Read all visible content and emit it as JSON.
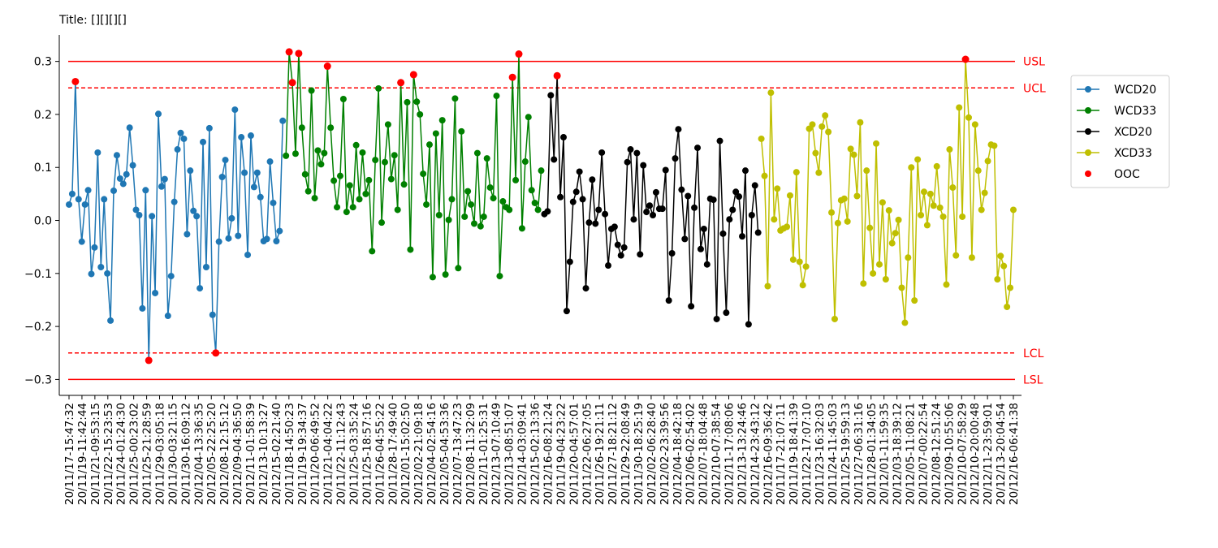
{
  "chart_data": {
    "type": "line",
    "title": "Title: [][][][]",
    "xlabel": "",
    "ylabel": "",
    "ylim": [
      -0.33,
      0.35
    ],
    "yticks": [
      -0.3,
      -0.2,
      -0.1,
      0.0,
      0.1,
      0.2,
      0.3
    ],
    "ytick_labels": [
      "−0.3",
      "−0.2",
      "−0.1",
      "0.0",
      "0.1",
      "0.2",
      "0.3"
    ],
    "grid": false,
    "legend_position": "right",
    "limits": [
      {
        "name": "USL",
        "value": 0.3,
        "style": "solid",
        "color": "#ff0000"
      },
      {
        "name": "UCL",
        "value": 0.25,
        "style": "dashed",
        "color": "#ff0000"
      },
      {
        "name": "LCL",
        "value": -0.25,
        "style": "dashed",
        "color": "#ff0000"
      },
      {
        "name": "LSL",
        "value": -0.3,
        "style": "solid",
        "color": "#ff0000"
      }
    ],
    "x_tick_labels": [
      "20/11/17-15:47:32",
      "20/11/19-11:42:44",
      "20/11/21-09:53:15",
      "20/11/22-15:23:53",
      "20/11/24-01:24:30",
      "20/11/25-00:23:02",
      "20/11/25-21:28:59",
      "20/11/29-03:05:18",
      "20/11/30-03:21:15",
      "20/11/30-16:09:12",
      "20/12/04-13:36:35",
      "20/12/05-22:25:20",
      "20/12/08-12:15:12",
      "20/12/09-04:36:50",
      "20/12/11-01:58:39",
      "20/12/13-10:13:27",
      "20/12/15-02:21:40",
      "20/11/18-14:50:23",
      "20/11/19-19:34:37",
      "20/11/20-06:49:52",
      "20/11/21-04:04:22",
      "20/11/22-11:12:43",
      "20/11/25-03:35:24",
      "20/11/25-18:57:16",
      "20/11/26-04:55:22",
      "20/11/28-17:49:40",
      "20/12/01-15:02:50",
      "20/12/02-21:09:18",
      "20/12/04-02:54:16",
      "20/12/05-04:53:36",
      "20/12/07-13:47:23",
      "20/12/08-11:32:09",
      "20/12/11-01:25:31",
      "20/12/13-07:10:49",
      "20/12/13-08:51:07",
      "20/12/14-03:09:41",
      "20/12/15-02:13:36",
      "20/12/16-08:21:24",
      "20/11/19-04:23:22",
      "20/11/20-04:57:01",
      "20/11/22-06:27:05",
      "20/11/26-19:21:11",
      "20/11/27-18:21:12",
      "20/11/29-22:08:49",
      "20/11/30-18:25:19",
      "20/12/02-06:28:40",
      "20/12/02-23:39:56",
      "20/12/04-18:42:18",
      "20/12/06-02:54:02",
      "20/12/07-18:04:48",
      "20/12/10-07:38:54",
      "20/12/11-17:08:06",
      "20/12/13-13:24:46",
      "20/12/14-23:43:12",
      "20/12/16-09:36:42",
      "20/11/17-21:07:11",
      "20/11/19-18:41:39",
      "20/11/22-17:07:10",
      "20/11/23-16:32:03",
      "20/11/24-11:45:03",
      "20/11/25-19:59:13",
      "20/11/27-06:31:16",
      "20/11/28-01:34:05",
      "20/12/01-11:59:35",
      "20/12/03-18:39:12",
      "20/12/05-11:08:21",
      "20/12/07-00:22:54",
      "20/12/08-12:51:24",
      "20/12/09-10:55:06",
      "20/12/10-07:58:29",
      "20/12/10-20:00:48",
      "20/12/11-23:59:01",
      "20/12/13-20:04:54",
      "20/12/16-06:41:38"
    ],
    "series": [
      {
        "name": "WCD20",
        "color": "#1f77b4",
        "values": [
          0.03,
          0.05,
          0.262,
          0.04,
          -0.04,
          0.03,
          0.057,
          -0.101,
          -0.051,
          0.128,
          -0.088,
          0.04,
          -0.1,
          -0.189,
          0.056,
          0.123,
          0.079,
          0.069,
          0.087,
          0.175,
          0.104,
          0.02,
          0.01,
          -0.166,
          0.057,
          -0.264,
          0.008,
          -0.137,
          0.201,
          0.064,
          0.078,
          -0.18,
          -0.105,
          0.035,
          0.134,
          0.165,
          0.154,
          -0.026,
          0.094,
          0.018,
          0.008,
          -0.128,
          0.148,
          -0.088,
          0.174,
          -0.178,
          -0.25,
          -0.04,
          0.082,
          0.114,
          -0.034,
          0.004,
          0.209,
          -0.029,
          0.157,
          0.09,
          -0.065,
          0.16,
          0.063,
          0.09,
          0.044,
          -0.039,
          -0.035,
          0.111,
          0.033,
          -0.039,
          -0.02,
          0.188
        ]
      },
      {
        "name": "WCD33",
        "color": "#008000",
        "values": [
          0.122,
          0.318,
          0.26,
          0.126,
          0.315,
          0.175,
          0.087,
          0.055,
          0.245,
          0.042,
          0.132,
          0.106,
          0.127,
          0.291,
          0.175,
          0.075,
          0.025,
          0.084,
          0.229,
          0.016,
          0.066,
          0.025,
          0.142,
          0.04,
          0.128,
          0.05,
          0.076,
          -0.058,
          0.114,
          0.249,
          -0.004,
          0.11,
          0.181,
          0.078,
          0.123,
          0.02,
          0.26,
          0.068,
          0.223,
          -0.055,
          0.275,
          0.224,
          0.2,
          0.088,
          0.03,
          0.143,
          -0.107,
          0.164,
          0.01,
          0.189,
          -0.102,
          0.001,
          0.04,
          0.23,
          -0.09,
          0.168,
          0.007,
          0.055,
          0.03,
          -0.006,
          0.127,
          -0.011,
          0.007,
          0.117,
          0.062,
          0.042,
          0.235,
          -0.105,
          0.036,
          0.025,
          0.02,
          0.27,
          0.076,
          0.314,
          -0.015,
          0.111,
          0.195,
          0.057,
          0.033,
          0.02,
          0.094
        ]
      },
      {
        "name": "XCD20",
        "color": "#000000",
        "values": [
          0.012,
          0.017,
          0.236,
          0.115,
          0.273,
          0.044,
          0.157,
          -0.171,
          -0.078,
          0.035,
          0.054,
          0.092,
          0.04,
          -0.128,
          -0.004,
          0.077,
          -0.006,
          0.02,
          0.128,
          0.012,
          -0.085,
          -0.016,
          -0.012,
          -0.046,
          -0.066,
          -0.051,
          0.11,
          0.134,
          0.002,
          0.127,
          -0.064,
          0.104,
          0.016,
          0.028,
          0.01,
          0.053,
          0.022,
          0.022,
          0.095,
          -0.151,
          -0.062,
          0.117,
          0.172,
          0.058,
          -0.035,
          0.046,
          -0.162,
          0.024,
          0.137,
          -0.054,
          -0.016,
          -0.083,
          0.041,
          0.039,
          -0.186,
          0.15,
          -0.025,
          -0.174,
          0.002,
          0.02,
          0.054,
          0.045,
          -0.03,
          0.094,
          -0.196,
          0.01,
          0.066,
          -0.023
        ]
      },
      {
        "name": "XCD33",
        "color": "#bfbf00",
        "values": [
          0.154,
          0.084,
          -0.124,
          0.241,
          0.002,
          0.06,
          -0.019,
          -0.015,
          -0.012,
          0.047,
          -0.074,
          0.091,
          -0.078,
          -0.122,
          -0.087,
          0.173,
          0.181,
          0.127,
          0.09,
          0.177,
          0.198,
          0.167,
          0.015,
          -0.186,
          -0.005,
          0.038,
          0.041,
          -0.002,
          0.135,
          0.124,
          0.046,
          0.185,
          -0.119,
          0.094,
          -0.014,
          -0.1,
          0.145,
          -0.083,
          0.034,
          -0.111,
          0.019,
          -0.043,
          -0.024,
          0.001,
          -0.127,
          -0.193,
          -0.07,
          0.1,
          -0.151,
          0.115,
          0.01,
          0.054,
          -0.009,
          0.05,
          0.028,
          0.102,
          0.024,
          0.007,
          -0.121,
          0.134,
          0.062,
          -0.066,
          0.213,
          0.007,
          0.304,
          0.194,
          -0.07,
          0.181,
          0.094,
          0.02,
          0.052,
          0.112,
          0.143,
          0.141,
          -0.111,
          -0.067,
          -0.086,
          -0.163,
          -0.127,
          0.02
        ]
      }
    ],
    "ooc": {
      "name": "OOC",
      "color": "#ff0000",
      "description_series_index": []
    }
  }
}
